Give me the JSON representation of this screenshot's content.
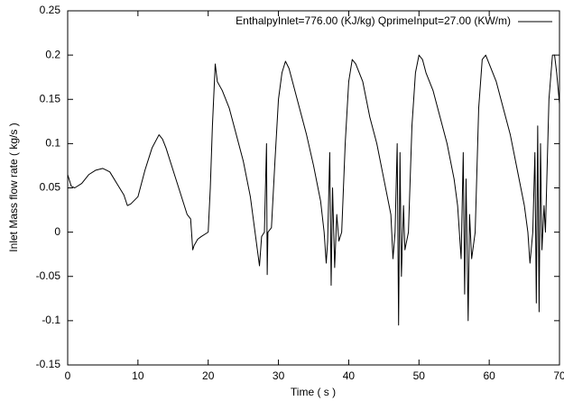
{
  "chart_data": {
    "type": "line",
    "xlabel": "Time ( s )",
    "ylabel": "Inlet Mass flow rate ( kg/s )",
    "x": [
      0,
      0.5,
      1,
      2,
      3,
      4,
      5,
      5.5,
      6,
      7,
      8,
      8.5,
      9,
      10,
      11,
      12,
      13,
      13.5,
      14,
      15,
      16,
      17,
      17.5,
      17.8,
      18,
      18.5,
      19,
      20,
      20.3,
      20.6,
      21,
      21.3,
      22,
      23,
      24,
      25,
      26,
      26.5,
      27,
      27.3,
      27.6,
      28,
      28.3,
      28.4,
      28.5,
      29,
      29.5,
      30,
      30.5,
      31,
      31.5,
      32,
      33,
      34,
      35,
      36,
      36.5,
      36.8,
      37,
      37.3,
      37.5,
      37.7,
      38,
      38.3,
      38.6,
      39,
      39.5,
      40,
      40.5,
      41,
      42,
      43,
      44,
      45,
      46,
      46.3,
      46.6,
      46.9,
      47.1,
      47.3,
      47.5,
      47.8,
      48,
      48.5,
      49,
      49.5,
      50,
      50.5,
      51,
      52,
      53,
      54,
      55,
      55.5,
      56,
      56.3,
      56.5,
      56.7,
      57,
      57.2,
      57.5,
      58,
      58.5,
      59,
      59.5,
      60,
      61,
      62,
      63,
      64,
      65,
      65.5,
      65.8,
      66.2,
      66.5,
      66.7,
      66.9,
      67.1,
      67.3,
      67.5,
      67.8,
      68,
      68.5,
      69,
      69.3,
      69.6,
      70
    ],
    "series": [
      {
        "name": "EnthalpyInlet=776.00 (KJ/kg)  QprimeInput=27.00 (KW/m)",
        "color": "#000000",
        "values": [
          0.065,
          0.052,
          0.05,
          0.055,
          0.065,
          0.07,
          0.072,
          0.07,
          0.068,
          0.055,
          0.042,
          0.03,
          0.032,
          0.04,
          0.07,
          0.095,
          0.11,
          0.105,
          0.095,
          0.07,
          0.045,
          0.02,
          0.015,
          -0.02,
          -0.015,
          -0.008,
          -0.005,
          0.0,
          0.05,
          0.12,
          0.19,
          0.17,
          0.16,
          0.14,
          0.11,
          0.08,
          0.04,
          0.01,
          -0.02,
          -0.038,
          -0.005,
          0.0,
          0.1,
          -0.048,
          0.0,
          0.005,
          0.08,
          0.15,
          0.18,
          0.193,
          0.185,
          0.17,
          0.14,
          0.11,
          0.075,
          0.035,
          0.0,
          -0.035,
          -0.01,
          0.09,
          -0.06,
          0.05,
          -0.04,
          0.02,
          -0.01,
          0.0,
          0.1,
          0.17,
          0.195,
          0.19,
          0.17,
          0.13,
          0.1,
          0.06,
          0.02,
          -0.03,
          0.0,
          0.1,
          -0.105,
          0.09,
          -0.05,
          0.03,
          -0.02,
          0.0,
          0.12,
          0.18,
          0.2,
          0.195,
          0.18,
          0.16,
          0.13,
          0.1,
          0.06,
          0.03,
          -0.03,
          0.09,
          -0.07,
          0.06,
          -0.1,
          0.02,
          -0.03,
          0.0,
          0.14,
          0.195,
          0.2,
          0.19,
          0.17,
          0.14,
          0.11,
          0.07,
          0.03,
          0.0,
          -0.035,
          0.0,
          0.09,
          -0.08,
          0.12,
          -0.09,
          0.1,
          -0.02,
          0.03,
          0.0,
          0.15,
          0.2,
          0.2,
          0.18,
          0.145
        ]
      }
    ],
    "xlim": [
      0,
      70
    ],
    "xticks": [
      0,
      10,
      20,
      30,
      40,
      50,
      60,
      70
    ],
    "ylim": [
      -0.15,
      0.25
    ],
    "yticks": [
      -0.15,
      -0.1,
      -0.05,
      0,
      0.05,
      0.1,
      0.15,
      0.2,
      0.25
    ],
    "grid": false,
    "legend": "upper right"
  }
}
